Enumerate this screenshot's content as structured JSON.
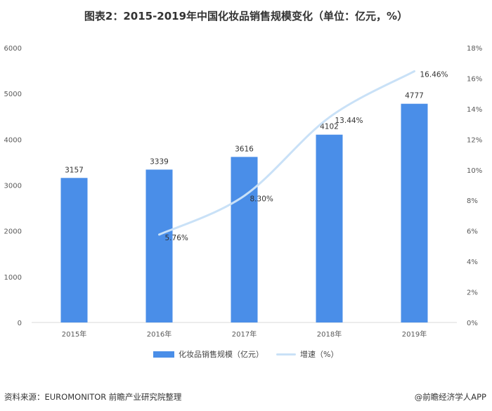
{
  "title": "图表2：2015-2019年中国化妆品销售规模变化（单位：亿元，%）",
  "source": "资料来源：EUROMONITOR 前瞻产业研究院整理",
  "credit": "@前瞻经济学人APP",
  "colors": {
    "bar": "#4a8ee8",
    "line": "#c9e1f7"
  },
  "chart_data": {
    "type": "bar",
    "categories": [
      "2015年",
      "2016年",
      "2017年",
      "2018年",
      "2019年"
    ],
    "series": [
      {
        "name": "化妆品销售规模（亿元）",
        "type": "bar",
        "axis": "left",
        "values": [
          3157,
          3339,
          3616,
          4102,
          4777
        ],
        "labels": [
          "3157",
          "3339",
          "3616",
          "4102",
          "4777"
        ]
      },
      {
        "name": "增速（%）",
        "type": "line",
        "axis": "right",
        "values": [
          null,
          5.76,
          8.3,
          13.44,
          16.46
        ],
        "labels": [
          "",
          "5.76%",
          "8.30%",
          "13.44%",
          "16.46%"
        ]
      }
    ],
    "ylim": [
      0,
      6000
    ],
    "yticks": [
      "0",
      "1000",
      "2000",
      "3000",
      "4000",
      "5000",
      "6000"
    ],
    "y2lim": [
      0,
      18
    ],
    "y2ticks": [
      "0%",
      "2%",
      "4%",
      "6%",
      "8%",
      "10%",
      "12%",
      "14%",
      "16%",
      "18%"
    ],
    "legend": "bottom"
  }
}
